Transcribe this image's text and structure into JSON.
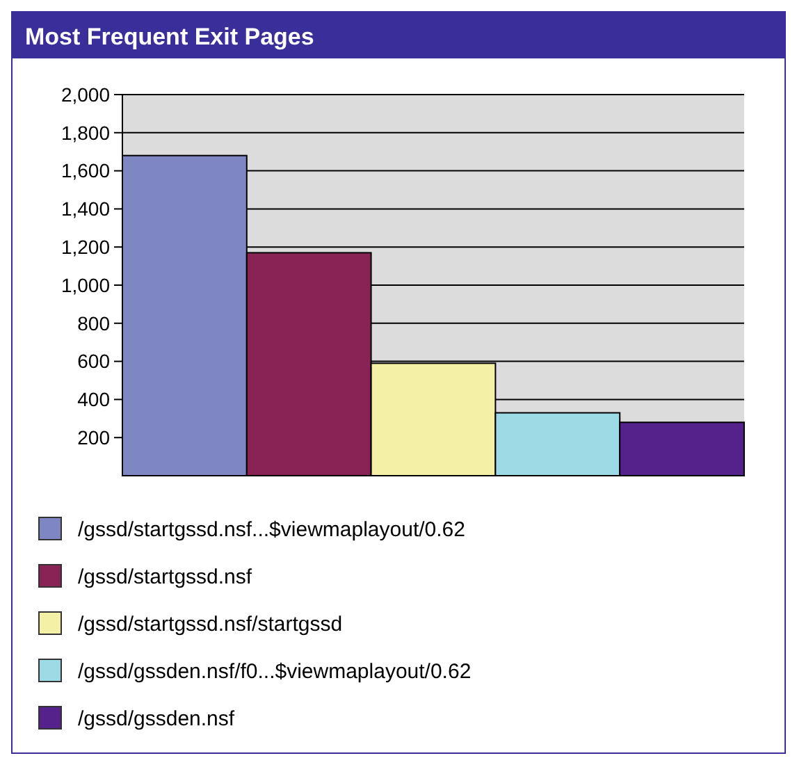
{
  "chart_data": {
    "type": "bar",
    "title": "Most Frequent Exit Pages",
    "categories": [
      null,
      null,
      null,
      null,
      null
    ],
    "series": [
      {
        "name": "/gssd/startgssd.nsf...$viewmaplayout/0.62",
        "color": "#7f86c4",
        "values": [
          1680,
          null,
          null,
          null,
          null
        ]
      },
      {
        "name": "/gssd/startgssd.nsf",
        "color": "#8a2355",
        "values": [
          null,
          1170,
          null,
          null,
          null
        ]
      },
      {
        "name": "/gssd/startgssd.nsf/startgssd",
        "color": "#f4f0a6",
        "values": [
          null,
          null,
          590,
          null,
          null
        ]
      },
      {
        "name": "/gssd/gssden.nsf/f0...$viewmaplayout/0.62",
        "color": "#9cdbe6",
        "values": [
          null,
          null,
          null,
          330,
          null
        ]
      },
      {
        "name": "/gssd/gssden.nsf",
        "color": "#55228c",
        "values": [
          null,
          null,
          null,
          null,
          280
        ]
      }
    ],
    "ylim": [
      0,
      2000
    ],
    "yticks": [
      {
        "value": 200,
        "label": "200"
      },
      {
        "value": 400,
        "label": "400"
      },
      {
        "value": 600,
        "label": "600"
      },
      {
        "value": 800,
        "label": "800"
      },
      {
        "value": 1000,
        "label": "1,000"
      },
      {
        "value": 1200,
        "label": "1,200"
      },
      {
        "value": 1400,
        "label": "1,400"
      },
      {
        "value": 1600,
        "label": "1,600"
      },
      {
        "value": 1800,
        "label": "1,800"
      },
      {
        "value": 2000,
        "label": "2,000"
      }
    ],
    "grid": "y",
    "legend": "bottom"
  }
}
